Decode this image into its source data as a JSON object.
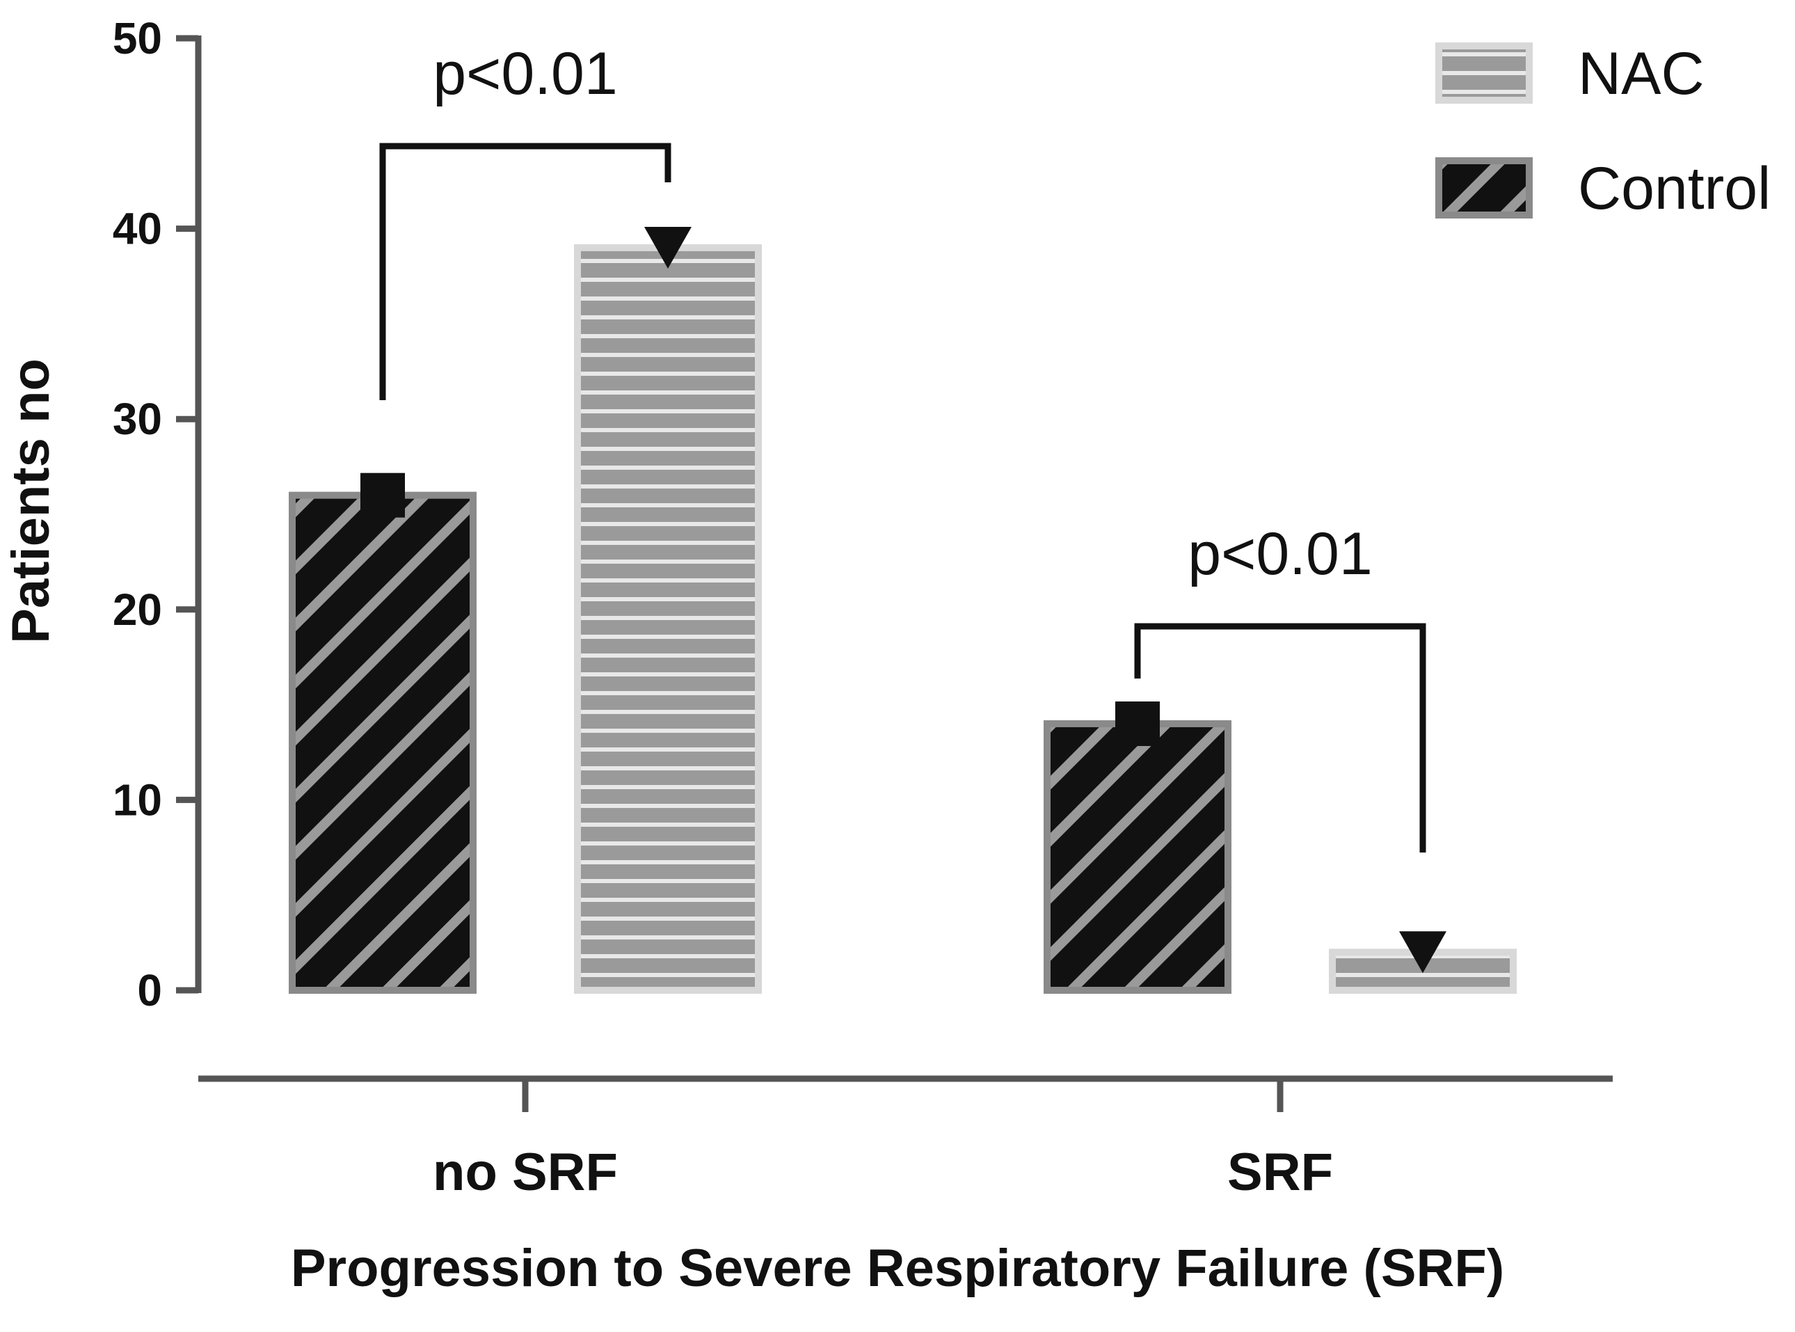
{
  "chart_data": {
    "type": "bar",
    "xlabel": "Progression to Severe Respiratory Failure (SRF)",
    "ylabel": "Patients no",
    "ylim": [
      0,
      50
    ],
    "yticks": [
      0,
      10,
      20,
      30,
      40,
      50
    ],
    "categories": [
      "no SRF",
      "SRF"
    ],
    "series": [
      {
        "name": "Control",
        "values": [
          26,
          14
        ],
        "pattern": "diagonal-hatch",
        "color": "#111111"
      },
      {
        "name": "NAC",
        "values": [
          39,
          2
        ],
        "pattern": "horizontal-stripes",
        "color": "#9a9a9a"
      }
    ],
    "legend_position": "top-right",
    "legend_order": [
      "NAC",
      "Control"
    ],
    "grid": false,
    "annotations": [
      {
        "text": "p<0.01",
        "category": "no SRF"
      },
      {
        "text": "p<0.01",
        "category": "SRF"
      }
    ]
  }
}
